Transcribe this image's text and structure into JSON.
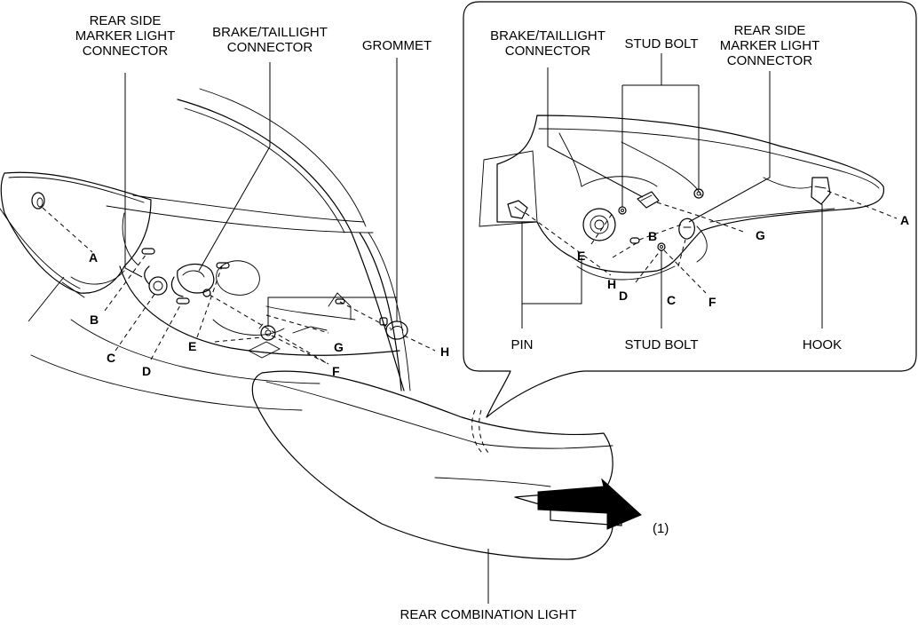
{
  "labels": {
    "left": {
      "rear_side_marker": "REAR SIDE\nMARKER LIGHT\nCONNECTOR",
      "brake_taillight": "BRAKE/TAILLIGHT\nCONNECTOR",
      "grommet": "GROMMET"
    },
    "inset": {
      "brake_taillight": "BRAKE/TAILLIGHT\nCONNECTOR",
      "stud_bolt_top": "STUD BOLT",
      "rear_side_marker": "REAR SIDE\nMARKER LIGHT\nCONNECTOR",
      "pin": "PIN",
      "stud_bolt_bottom": "STUD BOLT",
      "hook": "HOOK"
    },
    "rear_combination_light": "REAR COMBINATION LIGHT",
    "step": "(1)"
  },
  "letters": {
    "left": {
      "A": "A",
      "B": "B",
      "C": "C",
      "D": "D",
      "E": "E",
      "F": "F",
      "G": "G",
      "H": "H"
    },
    "inset": {
      "A": "A",
      "B": "B",
      "C": "C",
      "D": "D",
      "E": "E",
      "F": "F",
      "G": "G",
      "H": "H"
    }
  }
}
